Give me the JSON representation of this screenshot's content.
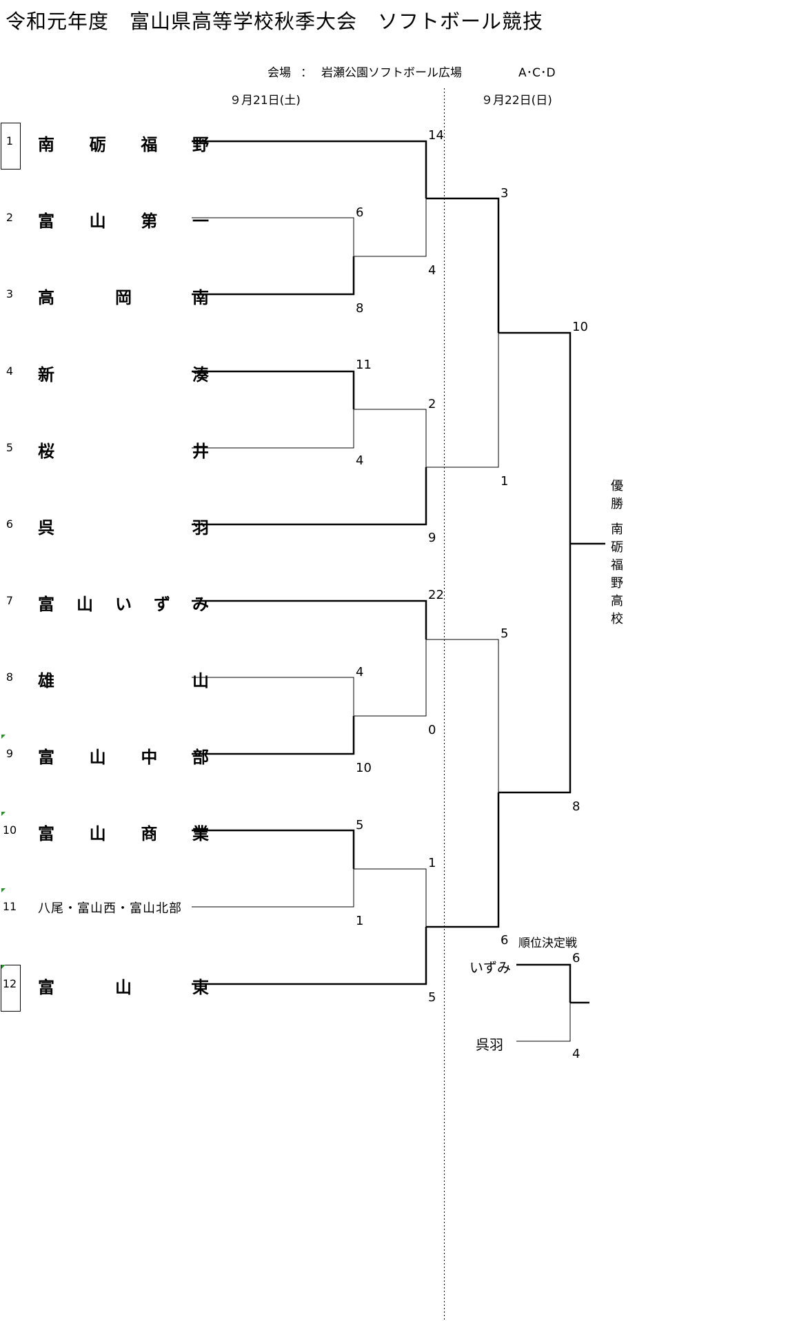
{
  "title": "令和元年度　富山県高等学校秋季大会　ソフトボール競技",
  "venue": {
    "label": "会場",
    "colon": "：",
    "name": "岩瀬公園ソフトボール広場",
    "courts": "A･C･D"
  },
  "dates": {
    "day1": "９月21日(土)",
    "day2": "９月22日(日)"
  },
  "teams": [
    {
      "seed": "1",
      "chars": [
        "南",
        "砺",
        "福",
        "野"
      ]
    },
    {
      "seed": "2",
      "chars": [
        "富",
        "山",
        "第",
        "一"
      ]
    },
    {
      "seed": "3",
      "chars": [
        "高",
        "岡",
        "南"
      ]
    },
    {
      "seed": "4",
      "chars": [
        "新",
        "湊"
      ]
    },
    {
      "seed": "5",
      "chars": [
        "桜",
        "井"
      ]
    },
    {
      "seed": "6",
      "chars": [
        "呉",
        "羽"
      ]
    },
    {
      "seed": "7",
      "chars": [
        "富",
        "山",
        "い",
        "ず",
        "み"
      ]
    },
    {
      "seed": "8",
      "chars": [
        "雄",
        "山"
      ]
    },
    {
      "seed": "9",
      "chars": [
        "富",
        "山",
        "中",
        "部"
      ]
    },
    {
      "seed": "10",
      "chars": [
        "富",
        "山",
        "商",
        "業"
      ]
    },
    {
      "seed": "11",
      "name": "八尾・富山西・富山北部"
    },
    {
      "seed": "12",
      "chars": [
        "富",
        "山",
        "東"
      ]
    }
  ],
  "scores": {
    "r1_2_3": [
      "6",
      "8"
    ],
    "r1_4_5": [
      "11",
      "4"
    ],
    "r1_8_9": [
      "4",
      "10"
    ],
    "r1_10_11": [
      "5",
      "1"
    ],
    "qf_1": [
      "14",
      "4"
    ],
    "qf_2": [
      "2",
      "9"
    ],
    "qf_3": [
      "22",
      "0"
    ],
    "qf_4": [
      "1",
      "5"
    ],
    "sf_1": [
      "3",
      "1"
    ],
    "sf_2": [
      "5",
      "6"
    ],
    "final": [
      "10",
      "8"
    ]
  },
  "champion": {
    "label": [
      "優",
      "勝"
    ],
    "school": [
      "南",
      "砺",
      "福",
      "野",
      "高",
      "校"
    ]
  },
  "placement": {
    "title": "順位決定戦",
    "team_a": "いずみ",
    "team_b": "呉羽",
    "score_a": "6",
    "score_b": "4"
  }
}
